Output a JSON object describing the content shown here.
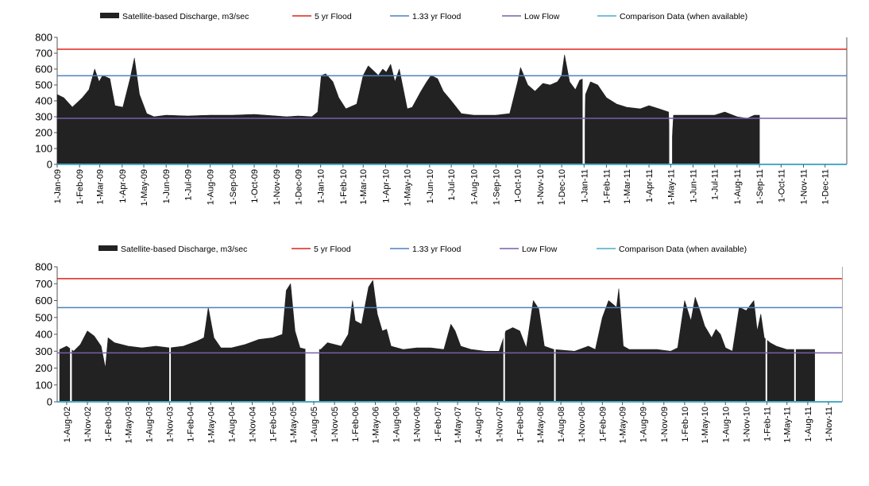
{
  "colors": {
    "discharge": "#222222",
    "flood5": "#e0221b",
    "flood133": "#4f81bd",
    "lowflow": "#7b5ea7",
    "comparison": "#4bacc6",
    "axis": "#555555"
  },
  "chart_data": [
    {
      "type": "area",
      "legend": [
        "Satellite-based Discharge, m3/sec",
        "5 yr Flood",
        "1.33 yr Flood",
        "Low Flow",
        "Comparison Data (when available)"
      ],
      "legend_position": "top",
      "ylim": [
        0,
        800
      ],
      "yticks": [
        0,
        100,
        200,
        300,
        400,
        500,
        600,
        700,
        800
      ],
      "x_start": "2009-01-01",
      "x_end": "2011-12-31",
      "xticks": [
        "1-Jan-09",
        "1-Feb-09",
        "1-Mar-09",
        "1-Apr-09",
        "1-May-09",
        "1-Jun-09",
        "1-Jul-09",
        "1-Aug-09",
        "1-Sep-09",
        "1-Oct-09",
        "1-Nov-09",
        "1-Dec-09",
        "1-Jan-10",
        "1-Feb-10",
        "1-Mar-10",
        "1-Apr-10",
        "1-May-10",
        "1-Jun-10",
        "1-Jul-10",
        "1-Aug-10",
        "1-Sep-10",
        "1-Oct-10",
        "1-Nov-10",
        "1-Dec-10",
        "1-Jan-11",
        "1-Feb-11",
        "1-Mar-11",
        "1-Apr-11",
        "1-May-11",
        "1-Jun-11",
        "1-Jul-11",
        "1-Aug-11",
        "1-Sep-11",
        "1-Oct-11",
        "1-Nov-11",
        "1-Dec-11"
      ],
      "thresholds": [
        {
          "name": "5 yr Flood",
          "value": 725
        },
        {
          "name": "1.33 yr Flood",
          "value": 558
        },
        {
          "name": "Low Flow",
          "value": 290
        },
        {
          "name": "Comparison Data (when available)",
          "value": 0
        }
      ],
      "series": [
        {
          "name": "Satellite-based Discharge, m3/sec",
          "x": [
            "2009-01-01",
            "2009-01-10",
            "2009-01-22",
            "2009-02-05",
            "2009-02-14",
            "2009-02-22",
            "2009-02-28",
            "2009-03-05",
            "2009-03-15",
            "2009-03-22",
            "2009-04-02",
            "2009-04-12",
            "2009-04-18",
            "2009-04-25",
            "2009-05-05",
            "2009-05-15",
            "2009-06-01",
            "2009-07-01",
            "2009-08-01",
            "2009-09-01",
            "2009-10-01",
            "2009-11-01",
            "2009-11-15",
            "2009-12-01",
            "2009-12-20",
            "2009-12-28",
            "2010-01-02",
            "2010-01-08",
            "2010-01-18",
            "2010-01-26",
            "2010-02-05",
            "2010-02-20",
            "2010-03-01",
            "2010-03-08",
            "2010-03-15",
            "2010-03-22",
            "2010-03-28",
            "2010-04-02",
            "2010-04-08",
            "2010-04-14",
            "2010-04-20",
            "2010-05-01",
            "2010-05-08",
            "2010-05-20",
            "2010-05-28",
            "2010-06-03",
            "2010-06-12",
            "2010-06-20",
            "2010-07-01",
            "2010-07-15",
            "2010-08-01",
            "2010-09-01",
            "2010-09-20",
            "2010-10-01",
            "2010-10-05",
            "2010-10-15",
            "2010-10-25",
            "2010-11-05",
            "2010-11-15",
            "2010-11-25",
            "2010-12-01",
            "2010-12-05",
            "2010-12-12",
            "2010-12-20",
            "2010-12-26",
            "2010-12-31",
            "2011-01-01",
            "2011-01-03",
            "2011-01-10",
            "2011-01-20",
            "2011-02-01",
            "2011-02-15",
            "2011-03-01",
            "2011-03-20",
            "2011-04-01",
            "2011-04-15",
            "2011-04-28",
            "2011-05-01",
            "2011-05-05",
            "2011-05-20",
            "2011-06-10",
            "2011-07-01",
            "2011-07-15",
            "2011-08-01",
            "2011-08-15",
            "2011-08-25",
            "2011-09-01"
          ],
          "values": [
            440,
            420,
            360,
            420,
            470,
            600,
            520,
            560,
            540,
            370,
            360,
            540,
            670,
            440,
            320,
            300,
            310,
            305,
            310,
            310,
            315,
            305,
            300,
            305,
            300,
            330,
            560,
            570,
            520,
            420,
            350,
            380,
            560,
            620,
            590,
            560,
            600,
            580,
            630,
            520,
            600,
            350,
            360,
            460,
            520,
            560,
            540,
            460,
            400,
            320,
            310,
            310,
            320,
            520,
            610,
            500,
            460,
            510,
            500,
            520,
            560,
            690,
            520,
            470,
            530,
            540,
            0,
            440,
            520,
            500,
            420,
            380,
            360,
            350,
            370,
            350,
            330,
            0,
            310,
            310,
            310,
            310,
            330,
            300,
            290,
            310,
            310
          ]
        }
      ],
      "gaps": [
        [
          "2010-12-30",
          "2011-01-02"
        ],
        [
          "2011-04-29",
          "2011-05-03"
        ]
      ]
    },
    {
      "type": "area",
      "legend": [
        "Satellite-based Discharge, m3/sec",
        "5 yr Flood",
        "1.33 yr Flood",
        "Low Flow",
        "Comparison Data (when available)"
      ],
      "legend_position": "top",
      "ylim": [
        0,
        800
      ],
      "yticks": [
        0,
        100,
        200,
        300,
        400,
        500,
        600,
        700,
        800
      ],
      "x_start": "2002-06-20",
      "x_end": "2011-12-31",
      "xticks": [
        "1-Aug-02",
        "1-Nov-02",
        "1-Feb-03",
        "1-May-03",
        "1-Aug-03",
        "1-Nov-03",
        "1-Feb-04",
        "1-May-04",
        "1-Aug-04",
        "1-Nov-04",
        "1-Feb-05",
        "1-May-05",
        "1-Aug-05",
        "1-Nov-05",
        "1-Feb-06",
        "1-May-06",
        "1-Aug-06",
        "1-Nov-06",
        "1-Feb-07",
        "1-May-07",
        "1-Aug-07",
        "1-Nov-07",
        "1-Feb-08",
        "1-May-08",
        "1-Aug-08",
        "1-Nov-08",
        "1-Feb-09",
        "1-May-09",
        "1-Aug-09",
        "1-Nov-09",
        "1-Feb-10",
        "1-May-10",
        "1-Aug-10",
        "1-Nov-10",
        "1-Feb-11",
        "1-May-11",
        "1-Aug-11",
        "1-Nov-11"
      ],
      "thresholds": [
        {
          "name": "5 yr Flood",
          "value": 730
        },
        {
          "name": "1.33 yr Flood",
          "value": 558
        },
        {
          "name": "Low Flow",
          "value": 290
        },
        {
          "name": "Comparison Data (when available)",
          "value": 0
        }
      ],
      "series": [
        {
          "name": "Satellite-based Discharge, m3/sec",
          "x": [
            "2002-07-01",
            "2002-08-01",
            "2002-09-01",
            "2002-10-01",
            "2002-11-01",
            "2002-12-01",
            "2003-01-01",
            "2003-01-20",
            "2003-02-01",
            "2003-03-01",
            "2003-05-01",
            "2003-07-01",
            "2003-09-01",
            "2003-11-01",
            "2004-01-01",
            "2004-03-01",
            "2004-04-01",
            "2004-04-20",
            "2004-05-15",
            "2004-06-15",
            "2004-08-01",
            "2004-10-01",
            "2004-12-01",
            "2005-02-01",
            "2005-03-15",
            "2005-04-01",
            "2005-04-20",
            "2005-05-10",
            "2005-06-01",
            "2005-07-01",
            "2005-09-01",
            "2005-10-01",
            "2005-12-01",
            "2006-01-01",
            "2006-01-20",
            "2006-02-01",
            "2006-03-01",
            "2006-04-01",
            "2006-04-20",
            "2006-05-10",
            "2006-06-01",
            "2006-06-20",
            "2006-07-10",
            "2006-09-01",
            "2006-11-01",
            "2007-01-01",
            "2007-03-01",
            "2007-04-01",
            "2007-04-20",
            "2007-05-15",
            "2007-07-01",
            "2007-09-01",
            "2007-11-01",
            "2007-12-01",
            "2008-01-01",
            "2008-02-01",
            "2008-03-01",
            "2008-04-01",
            "2008-04-25",
            "2008-05-20",
            "2008-07-01",
            "2008-10-01",
            "2008-12-01",
            "2009-01-01",
            "2009-02-01",
            "2009-03-01",
            "2009-04-05",
            "2009-04-15",
            "2009-05-05",
            "2009-06-01",
            "2009-08-01",
            "2009-10-01",
            "2009-12-01",
            "2010-01-01",
            "2010-02-01",
            "2010-03-01",
            "2010-03-20",
            "2010-04-10",
            "2010-05-01",
            "2010-06-01",
            "2010-06-20",
            "2010-07-10",
            "2010-08-01",
            "2010-09-01",
            "2010-10-01",
            "2010-11-01",
            "2010-12-05",
            "2010-12-20",
            "2011-01-05",
            "2011-01-20",
            "2011-02-15",
            "2011-03-15",
            "2011-05-01",
            "2011-07-01",
            "2011-09-01"
          ],
          "values": [
            310,
            330,
            300,
            340,
            420,
            390,
            330,
            200,
            380,
            350,
            330,
            320,
            330,
            320,
            330,
            360,
            380,
            560,
            380,
            320,
            320,
            340,
            370,
            380,
            400,
            660,
            700,
            420,
            320,
            310,
            310,
            350,
            330,
            400,
            600,
            480,
            460,
            680,
            720,
            520,
            420,
            430,
            330,
            310,
            320,
            320,
            310,
            460,
            420,
            330,
            310,
            300,
            300,
            420,
            440,
            420,
            320,
            600,
            550,
            330,
            310,
            300,
            330,
            310,
            500,
            600,
            560,
            670,
            330,
            310,
            310,
            310,
            300,
            320,
            600,
            480,
            620,
            540,
            450,
            380,
            430,
            400,
            320,
            300,
            560,
            540,
            600,
            420,
            520,
            380,
            350,
            330,
            310,
            310,
            310
          ]
        }
      ],
      "gaps": [
        [
          "2002-08-16",
          "2002-08-24"
        ],
        [
          "2003-10-30",
          "2003-11-05"
        ],
        [
          "2005-06-25",
          "2005-08-25"
        ],
        [
          "2007-11-20",
          "2007-11-26"
        ],
        [
          "2008-07-02",
          "2008-07-06"
        ],
        [
          "2011-01-26",
          "2011-02-01"
        ],
        [
          "2011-06-02",
          "2011-06-08"
        ],
        [
          "2011-09-02",
          "2011-12-31"
        ]
      ]
    }
  ]
}
